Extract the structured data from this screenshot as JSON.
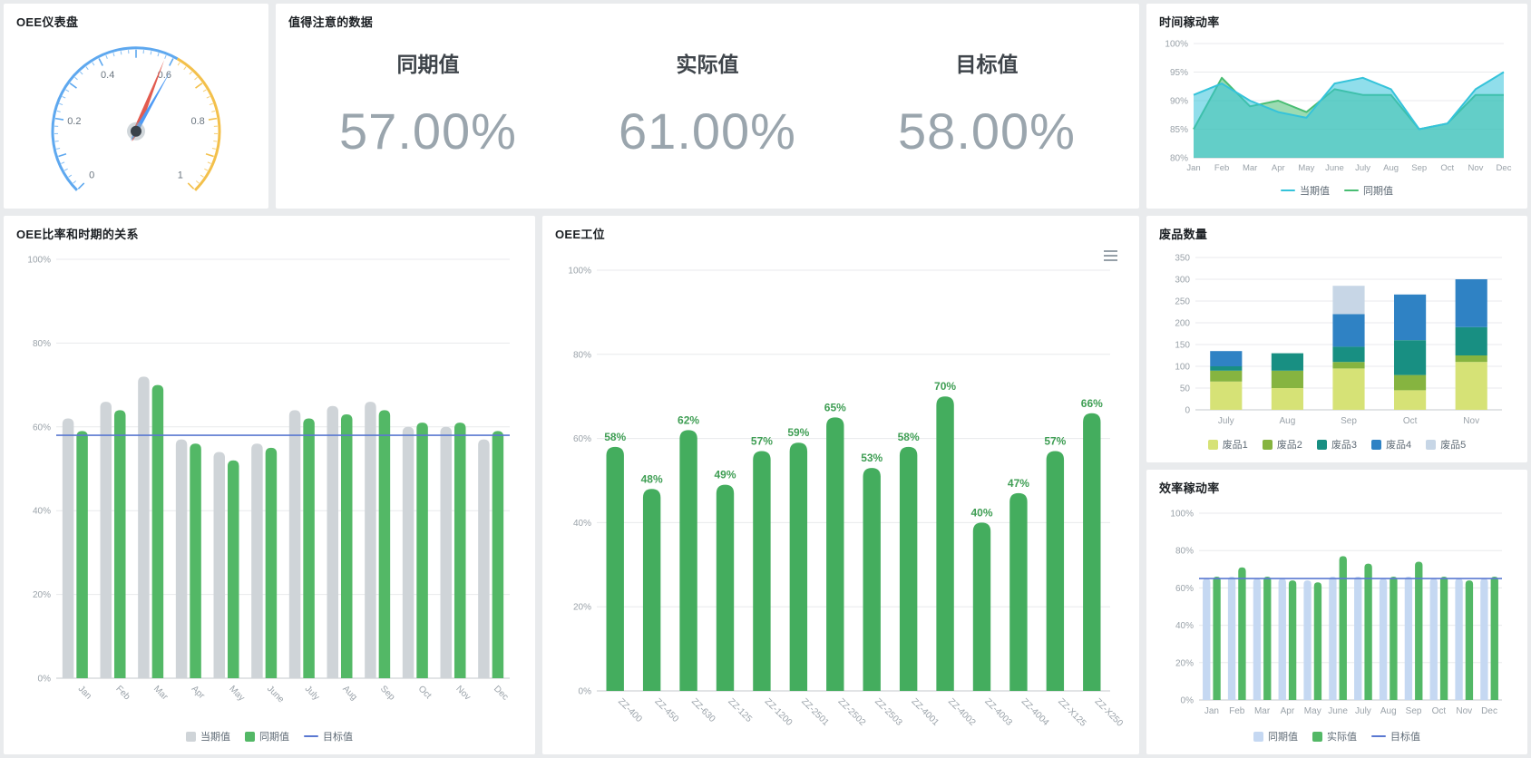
{
  "page": {
    "background": "#e9ebed"
  },
  "panels": {
    "gauge": {
      "title": "OEE仪表盘"
    },
    "kpi": {
      "title": "值得注意的数据",
      "items": [
        {
          "label": "同期值",
          "value": "57.00%"
        },
        {
          "label": "实际值",
          "value": "61.00%"
        },
        {
          "label": "目标值",
          "value": "58.00%"
        }
      ]
    },
    "time_rate": {
      "title": "时间稼动率"
    },
    "oee_ratio": {
      "title": "OEE比率和时期的关系"
    },
    "oee_station": {
      "title": "OEE工位"
    },
    "scrap": {
      "title": "废品数量"
    },
    "efficiency": {
      "title": "效率稼动率"
    }
  },
  "chart_data": [
    {
      "id": "gauge",
      "type": "gauge",
      "title": "OEE仪表盘",
      "min": 0,
      "max": 1,
      "tick_labels": [
        {
          "v": 0,
          "label": "0"
        },
        {
          "v": 0.2,
          "label": "0.2"
        },
        {
          "v": 0.4,
          "label": "0.4"
        },
        {
          "v": 0.6,
          "label": "0.6"
        },
        {
          "v": 0.8,
          "label": "0.8"
        },
        {
          "v": 1,
          "label": "1"
        }
      ],
      "segments": [
        {
          "to": 0.61,
          "color": "#5ea8ef"
        },
        {
          "to": 1,
          "color": "#f3c04b"
        }
      ],
      "needles": [
        {
          "value": 0.58,
          "color": "#e25c50"
        },
        {
          "value": 0.61,
          "color": "#4f9bf5"
        }
      ]
    },
    {
      "id": "time_rate",
      "type": "area",
      "title": "时间稼动率",
      "x": [
        "Jan",
        "Feb",
        "Mar",
        "Apr",
        "May",
        "June",
        "July",
        "Aug",
        "Sep",
        "Oct",
        "Nov",
        "Dec"
      ],
      "ylim": [
        80,
        100
      ],
      "yticks": [
        80,
        85,
        90,
        95,
        100
      ],
      "ytick_suffix": "%",
      "series": [
        {
          "name": "当期值",
          "color": "#35c3da",
          "values": [
            91,
            93,
            90,
            88,
            87,
            93,
            94,
            92,
            85,
            86,
            92,
            95
          ]
        },
        {
          "name": "同期值",
          "color": "#49bd73",
          "values": [
            85,
            94,
            89,
            90,
            88,
            92,
            91,
            91,
            85,
            86,
            91,
            91
          ]
        }
      ],
      "legend_position": "bottom"
    },
    {
      "id": "oee_ratio",
      "type": "grouped-bar",
      "title": "OEE比率和时期的关系",
      "rotate_labels": true,
      "categories": [
        "Jan",
        "Feb",
        "Mar",
        "Apr",
        "May",
        "June",
        "July",
        "Aug",
        "Sep",
        "Oct",
        "Nov",
        "Dec"
      ],
      "ylim": [
        0,
        100
      ],
      "yticks": [
        0,
        20,
        40,
        60,
        80,
        100
      ],
      "ytick_suffix": "%",
      "series": [
        {
          "name": "当期值",
          "color": "#cfd4d8",
          "values": [
            62,
            66,
            72,
            57,
            54,
            56,
            64,
            65,
            66,
            60,
            60,
            57
          ]
        },
        {
          "name": "同期值",
          "color": "#53b866",
          "values": [
            59,
            64,
            70,
            56,
            52,
            55,
            62,
            63,
            64,
            61,
            61,
            59
          ]
        }
      ],
      "target_line": {
        "name": "目标值",
        "value": 58,
        "color": "#5a78d1"
      },
      "legend_position": "bottom"
    },
    {
      "id": "oee_station",
      "type": "bar",
      "title": "OEE工位",
      "rotate_labels": true,
      "toolbox": true,
      "categories": [
        "ZZ-400",
        "ZZ-450",
        "ZZ-630",
        "ZZ-125",
        "ZZ-1200",
        "ZZ-2501",
        "ZZ-2502",
        "ZZ-2503",
        "ZZ-4001",
        "ZZ-4002",
        "ZZ-4003",
        "ZZ-4004",
        "ZZ-X125",
        "ZZ-X250"
      ],
      "values": [
        58,
        48,
        62,
        49,
        57,
        59,
        65,
        53,
        58,
        70,
        40,
        47,
        57,
        66
      ],
      "value_labels": [
        "58%",
        "48%",
        "62%",
        "49%",
        "57%",
        "59%",
        "65%",
        "53%",
        "58%",
        "70%",
        "40%",
        "47%",
        "57%",
        "66%"
      ],
      "bar_color": "#44ad5e",
      "label_color": "#3f9e54",
      "ylim": [
        0,
        100
      ],
      "yticks": [
        0,
        20,
        40,
        60,
        80,
        100
      ],
      "ytick_suffix": "%"
    },
    {
      "id": "scrap",
      "type": "stacked-bar",
      "title": "废品数量",
      "categories": [
        "July",
        "Aug",
        "Sep",
        "Oct",
        "Nov"
      ],
      "ylim": [
        0,
        350
      ],
      "yticks": [
        0,
        50,
        100,
        150,
        200,
        250,
        300,
        350
      ],
      "ytick_suffix": "",
      "series": [
        {
          "name": "废品1",
          "color": "#d6e276",
          "values": [
            65,
            50,
            95,
            45,
            110
          ]
        },
        {
          "name": "废品2",
          "color": "#86b440",
          "values": [
            25,
            40,
            15,
            35,
            15
          ]
        },
        {
          "name": "废品3",
          "color": "#188f82",
          "values": [
            10,
            40,
            35,
            80,
            65
          ]
        },
        {
          "name": "废品4",
          "color": "#2f82c4",
          "values": [
            35,
            0,
            75,
            105,
            110
          ]
        },
        {
          "name": "废品5",
          "color": "#c7d6e6",
          "values": [
            0,
            0,
            65,
            0,
            0
          ]
        }
      ],
      "legend_position": "bottom"
    },
    {
      "id": "efficiency",
      "type": "grouped-bar",
      "title": "效率稼动率",
      "rotate_labels": false,
      "categories": [
        "Jan",
        "Feb",
        "Mar",
        "Apr",
        "May",
        "June",
        "July",
        "Aug",
        "Sep",
        "Oct",
        "Nov",
        "Dec"
      ],
      "ylim": [
        0,
        100
      ],
      "yticks": [
        0,
        20,
        40,
        60,
        80,
        100
      ],
      "ytick_suffix": "%",
      "series": [
        {
          "name": "同期值",
          "color": "#c5d8f2",
          "values": [
            65,
            66,
            65,
            65,
            64,
            66,
            66,
            65,
            66,
            65,
            65,
            65
          ]
        },
        {
          "name": "实际值",
          "color": "#53b866",
          "values": [
            66,
            71,
            66,
            64,
            63,
            77,
            73,
            66,
            74,
            66,
            64,
            66
          ]
        }
      ],
      "target_line": {
        "name": "目标值",
        "value": 65,
        "color": "#5a78d1"
      },
      "legend_position": "bottom"
    }
  ]
}
